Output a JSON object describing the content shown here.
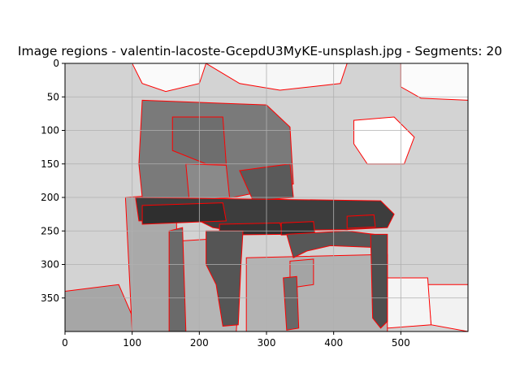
{
  "chart_data": {
    "type": "heatmap",
    "title": "Image regions - valentin-lacoste-GcepdU3MyKE-unsplash.jpg - Segments: 20",
    "xlabel": "",
    "ylabel": "",
    "xlim": [
      0,
      600
    ],
    "ylim": [
      400,
      0
    ],
    "x_ticks": [
      0,
      100,
      200,
      300,
      400,
      500
    ],
    "y_ticks": [
      0,
      50,
      100,
      150,
      200,
      250,
      300,
      350
    ],
    "grid": true,
    "boundary_color": "#ff0000",
    "grid_color": "#b0b0b0",
    "regions": [
      {
        "shade": "#d3d3d3",
        "points": [
          [
            0,
            0
          ],
          [
            600,
            0
          ],
          [
            600,
            400
          ],
          [
            0,
            400
          ]
        ]
      },
      {
        "shade": "#fafafa",
        "points": [
          [
            100,
            0
          ],
          [
            210,
            0
          ],
          [
            200,
            30
          ],
          [
            150,
            42
          ],
          [
            115,
            30
          ]
        ]
      },
      {
        "shade": "#f7f7f7",
        "points": [
          [
            210,
            0
          ],
          [
            420,
            0
          ],
          [
            410,
            30
          ],
          [
            320,
            40
          ],
          [
            260,
            30
          ]
        ]
      },
      {
        "shade": "#fbfbfb",
        "points": [
          [
            500,
            0
          ],
          [
            600,
            0
          ],
          [
            600,
            55
          ],
          [
            530,
            52
          ],
          [
            500,
            35
          ]
        ]
      },
      {
        "shade": "#ffffff",
        "points": [
          [
            430,
            85
          ],
          [
            490,
            80
          ],
          [
            520,
            110
          ],
          [
            505,
            150
          ],
          [
            450,
            150
          ],
          [
            430,
            120
          ]
        ]
      },
      {
        "shade": "#f2f2f2",
        "points": [
          [
            540,
            330
          ],
          [
            600,
            330
          ],
          [
            600,
            400
          ],
          [
            545,
            390
          ]
        ]
      },
      {
        "shade": "#f5f5f5",
        "points": [
          [
            470,
            320
          ],
          [
            540,
            320
          ],
          [
            545,
            390
          ],
          [
            480,
            395
          ]
        ]
      },
      {
        "shade": "#a6a6a6",
        "points": [
          [
            0,
            340
          ],
          [
            80,
            330
          ],
          [
            110,
            400
          ],
          [
            0,
            400
          ]
        ]
      },
      {
        "shade": "#a9a9a9",
        "points": [
          [
            90,
            200
          ],
          [
            165,
            195
          ],
          [
            170,
            400
          ],
          [
            100,
            400
          ],
          [
            95,
            300
          ]
        ]
      },
      {
        "shade": "#b5b5b5",
        "points": [
          [
            170,
            265
          ],
          [
            250,
            260
          ],
          [
            262,
            290
          ],
          [
            255,
            400
          ],
          [
            170,
            400
          ]
        ]
      },
      {
        "shade": "#b3b3b3",
        "points": [
          [
            270,
            290
          ],
          [
            480,
            285
          ],
          [
            480,
            400
          ],
          [
            270,
            400
          ]
        ]
      },
      {
        "shade": "#a4a4a4",
        "points": [
          [
            335,
            295
          ],
          [
            370,
            292
          ],
          [
            370,
            330
          ],
          [
            335,
            335
          ]
        ]
      },
      {
        "shade": "#7a7a7a",
        "points": [
          [
            115,
            55
          ],
          [
            300,
            62
          ],
          [
            335,
            95
          ],
          [
            340,
            180
          ],
          [
            300,
            190
          ],
          [
            250,
            200
          ],
          [
            170,
            205
          ],
          [
            115,
            200
          ],
          [
            110,
            150
          ]
        ]
      },
      {
        "shade": "#6e6e6e",
        "points": [
          [
            160,
            80
          ],
          [
            235,
            80
          ],
          [
            240,
            150
          ],
          [
            210,
            150
          ],
          [
            160,
            130
          ]
        ]
      },
      {
        "shade": "#8a8a8a",
        "points": [
          [
            180,
            150
          ],
          [
            240,
            152
          ],
          [
            245,
            200
          ],
          [
            185,
            205
          ]
        ]
      },
      {
        "shade": "#5a5a5a",
        "points": [
          [
            260,
            160
          ],
          [
            335,
            150
          ],
          [
            340,
            200
          ],
          [
            280,
            205
          ]
        ]
      },
      {
        "shade": "#3d3d3d",
        "points": [
          [
            105,
            200
          ],
          [
            470,
            205
          ],
          [
            490,
            225
          ],
          [
            480,
            245
          ],
          [
            420,
            248
          ],
          [
            250,
            250
          ],
          [
            220,
            245
          ],
          [
            200,
            235
          ],
          [
            110,
            235
          ]
        ]
      },
      {
        "shade": "#2f2f2f",
        "points": [
          [
            115,
            212
          ],
          [
            235,
            208
          ],
          [
            240,
            235
          ],
          [
            115,
            240
          ]
        ]
      },
      {
        "shade": "#323232",
        "points": [
          [
            230,
            240
          ],
          [
            320,
            238
          ],
          [
            325,
            255
          ],
          [
            230,
            256
          ]
        ]
      },
      {
        "shade": "#303030",
        "points": [
          [
            322,
            238
          ],
          [
            370,
            236
          ],
          [
            372,
            254
          ],
          [
            322,
            256
          ]
        ]
      },
      {
        "shade": "#3a3a3a",
        "points": [
          [
            420,
            228
          ],
          [
            460,
            226
          ],
          [
            462,
            244
          ],
          [
            420,
            246
          ]
        ]
      },
      {
        "shade": "#555555",
        "points": [
          [
            210,
            250
          ],
          [
            265,
            250
          ],
          [
            262,
            300
          ],
          [
            258,
            390
          ],
          [
            235,
            392
          ],
          [
            225,
            330
          ],
          [
            210,
            300
          ]
        ]
      },
      {
        "shade": "#575757",
        "points": [
          [
            330,
            255
          ],
          [
            420,
            250
          ],
          [
            460,
            255
          ],
          [
            470,
            275
          ],
          [
            395,
            272
          ],
          [
            360,
            280
          ],
          [
            340,
            290
          ]
        ]
      },
      {
        "shade": "#4e4e4e",
        "points": [
          [
            455,
            255
          ],
          [
            480,
            255
          ],
          [
            480,
            385
          ],
          [
            470,
            395
          ],
          [
            458,
            380
          ]
        ]
      },
      {
        "shade": "#686868",
        "points": [
          [
            325,
            320
          ],
          [
            345,
            318
          ],
          [
            348,
            395
          ],
          [
            330,
            398
          ]
        ]
      },
      {
        "shade": "#6a6a6a",
        "points": [
          [
            155,
            250
          ],
          [
            175,
            245
          ],
          [
            180,
            400
          ],
          [
            155,
            400
          ]
        ]
      }
    ]
  }
}
